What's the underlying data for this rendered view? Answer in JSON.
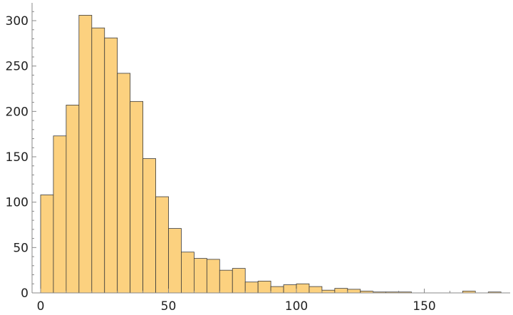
{
  "chart_data": {
    "type": "bar",
    "title": "",
    "xlabel": "",
    "ylabel": "",
    "bin_width": 5,
    "xlim": [
      0,
      180
    ],
    "ylim": [
      0,
      320
    ],
    "x_ticks": [
      0,
      50,
      100,
      150
    ],
    "x_tick_labels": [
      "0",
      "50",
      "100",
      "150"
    ],
    "y_ticks": [
      0,
      50,
      100,
      150,
      200,
      250,
      300
    ],
    "y_tick_labels": [
      "0",
      "50",
      "100",
      "150",
      "200",
      "250",
      "300"
    ],
    "bins": [
      {
        "start": 0,
        "count": 108
      },
      {
        "start": 5,
        "count": 173
      },
      {
        "start": 10,
        "count": 207
      },
      {
        "start": 15,
        "count": 306
      },
      {
        "start": 20,
        "count": 292
      },
      {
        "start": 25,
        "count": 281
      },
      {
        "start": 30,
        "count": 242
      },
      {
        "start": 35,
        "count": 211
      },
      {
        "start": 40,
        "count": 148
      },
      {
        "start": 45,
        "count": 106
      },
      {
        "start": 50,
        "count": 71
      },
      {
        "start": 55,
        "count": 45
      },
      {
        "start": 60,
        "count": 38
      },
      {
        "start": 65,
        "count": 37
      },
      {
        "start": 70,
        "count": 25
      },
      {
        "start": 75,
        "count": 27
      },
      {
        "start": 80,
        "count": 12
      },
      {
        "start": 85,
        "count": 13
      },
      {
        "start": 90,
        "count": 7
      },
      {
        "start": 95,
        "count": 9
      },
      {
        "start": 100,
        "count": 10
      },
      {
        "start": 105,
        "count": 7
      },
      {
        "start": 110,
        "count": 3
      },
      {
        "start": 115,
        "count": 5
      },
      {
        "start": 120,
        "count": 4
      },
      {
        "start": 125,
        "count": 2
      },
      {
        "start": 130,
        "count": 1
      },
      {
        "start": 135,
        "count": 1
      },
      {
        "start": 140,
        "count": 1
      },
      {
        "start": 165,
        "count": 2
      },
      {
        "start": 175,
        "count": 1
      }
    ],
    "grid": false,
    "legend": "none",
    "colors": {
      "bar_fill": "#fcd17f",
      "bar_stroke": "#3a3a3a",
      "axis": "#888888",
      "text": "#222222"
    }
  }
}
